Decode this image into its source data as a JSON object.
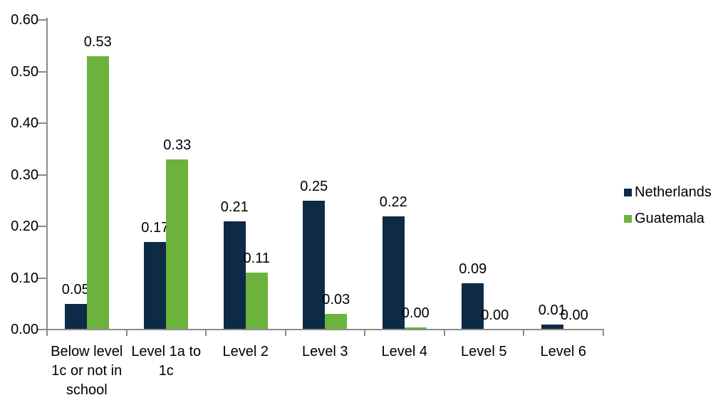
{
  "chart_data": {
    "type": "bar",
    "title": "",
    "categories": [
      "Below level 1c or not in school",
      "Level 1a to 1c",
      "Level 2",
      "Level 3",
      "Level 4",
      "Level 5",
      "Level 6"
    ],
    "categories_multiline": [
      "Below level\n1c or not in\nschool",
      "Level 1a to\n1c",
      "Level 2",
      "Level 3",
      "Level 4",
      "Level 5",
      "Level 6"
    ],
    "series": [
      {
        "name": "Netherlands",
        "color": "#0d2a46",
        "values": [
          0.05,
          0.17,
          0.21,
          0.25,
          0.22,
          0.09,
          0.01
        ],
        "labels": [
          "0.05",
          "0.17",
          "0.21",
          "0.25",
          "0.22",
          "0.09",
          "0.01"
        ]
      },
      {
        "name": "Guatemala",
        "color": "#6bb33d",
        "values": [
          0.53,
          0.33,
          0.11,
          0.03,
          0.004,
          0,
          0
        ],
        "labels": [
          "0.53",
          "0.33",
          "0.11",
          "0.03",
          "0.00",
          "0.00",
          "0.00"
        ]
      }
    ],
    "xlabel": "",
    "ylabel": "",
    "ylim": [
      0,
      0.6
    ],
    "ytick_step": 0.1,
    "ytick_labels": [
      "0.00",
      "0.10",
      "0.20",
      "0.30",
      "0.40",
      "0.50",
      "0.60"
    ],
    "grid": false,
    "data_labels": true,
    "legend_position": "right",
    "axis_color": "#8c8c8c",
    "text_color": "#000000",
    "background_color": "#ffffff"
  }
}
